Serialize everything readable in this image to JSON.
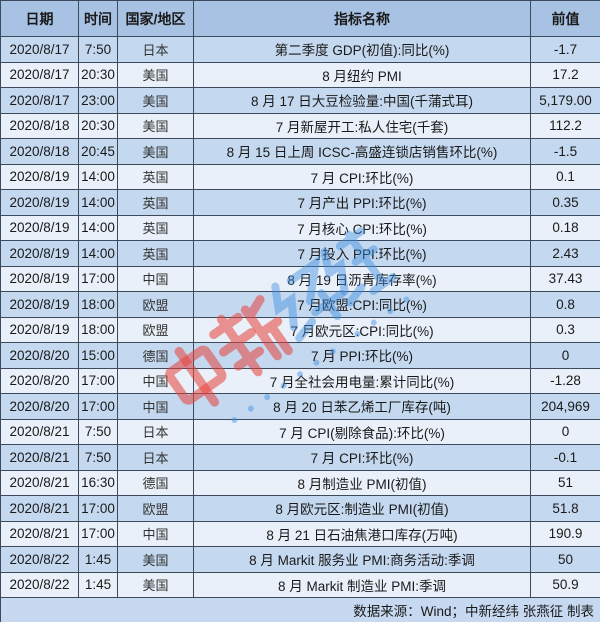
{
  "table": {
    "headers": [
      "日期",
      "时间",
      "国家/地区",
      "指标名称",
      "前值"
    ],
    "rows": [
      {
        "date": "2020/8/17",
        "time": "7:50",
        "country": "日本",
        "name": "第二季度 GDP(初值):同比(%)",
        "prev": "-1.7"
      },
      {
        "date": "2020/8/17",
        "time": "20:30",
        "country": "美国",
        "name": "8 月纽约 PMI",
        "prev": "17.2"
      },
      {
        "date": "2020/8/17",
        "time": "23:00",
        "country": "美国",
        "name": "8 月 17 日大豆检验量:中国(千蒲式耳)",
        "prev": "5,179.00"
      },
      {
        "date": "2020/8/18",
        "time": "20:30",
        "country": "美国",
        "name": "7 月新屋开工:私人住宅(千套)",
        "prev": "112.2"
      },
      {
        "date": "2020/8/18",
        "time": "20:45",
        "country": "美国",
        "name": "8 月 15 日上周 ICSC-高盛连锁店销售环比(%)",
        "prev": "-1.5"
      },
      {
        "date": "2020/8/19",
        "time": "14:00",
        "country": "英国",
        "name": "7 月 CPI:环比(%)",
        "prev": "0.1"
      },
      {
        "date": "2020/8/19",
        "time": "14:00",
        "country": "英国",
        "name": "7 月产出 PPI:环比(%)",
        "prev": "0.35"
      },
      {
        "date": "2020/8/19",
        "time": "14:00",
        "country": "英国",
        "name": "7 月核心 CPI:环比(%)",
        "prev": "0.18"
      },
      {
        "date": "2020/8/19",
        "time": "14:00",
        "country": "英国",
        "name": "7 月投入 PPI:环比(%)",
        "prev": "2.43"
      },
      {
        "date": "2020/8/19",
        "time": "17:00",
        "country": "中国",
        "name": "8 月 19 日沥青库存率(%)",
        "prev": "37.43"
      },
      {
        "date": "2020/8/19",
        "time": "18:00",
        "country": "欧盟",
        "name": "7 月欧盟:CPI:同比(%)",
        "prev": "0.8"
      },
      {
        "date": "2020/8/19",
        "time": "18:00",
        "country": "欧盟",
        "name": "7 月欧元区:CPI:同比(%)",
        "prev": "0.3"
      },
      {
        "date": "2020/8/20",
        "time": "15:00",
        "country": "德国",
        "name": "7 月 PPI:环比(%)",
        "prev": "0"
      },
      {
        "date": "2020/8/20",
        "time": "17:00",
        "country": "中国",
        "name": "7 月全社会用电量:累计同比(%)",
        "prev": "-1.28"
      },
      {
        "date": "2020/8/20",
        "time": "17:00",
        "country": "中国",
        "name": "8 月 20 日苯乙烯工厂库存(吨)",
        "prev": "204,969"
      },
      {
        "date": "2020/8/21",
        "time": "7:50",
        "country": "日本",
        "name": "7 月 CPI(剔除食品):环比(%)",
        "prev": "0"
      },
      {
        "date": "2020/8/21",
        "time": "7:50",
        "country": "日本",
        "name": "7 月 CPI:环比(%)",
        "prev": "-0.1"
      },
      {
        "date": "2020/8/21",
        "time": "16:30",
        "country": "德国",
        "name": "8 月制造业 PMI(初值)",
        "prev": "51"
      },
      {
        "date": "2020/8/21",
        "time": "17:00",
        "country": "欧盟",
        "name": "8 月欧元区:制造业 PMI(初值)",
        "prev": "51.8"
      },
      {
        "date": "2020/8/21",
        "time": "17:00",
        "country": "中国",
        "name": "8 月 21 日石油焦港口库存(万吨)",
        "prev": "190.9"
      },
      {
        "date": "2020/8/22",
        "time": "1:45",
        "country": "美国",
        "name": "8 月 Markit 服务业 PMI:商务活动:季调",
        "prev": "50"
      },
      {
        "date": "2020/8/22",
        "time": "1:45",
        "country": "美国",
        "name": "8 月 Markit 制造业 PMI:季调",
        "prev": "50.9"
      }
    ],
    "footer": "数据来源：Wind；中新经纬 张燕征 制表"
  },
  "watermark": {
    "logo": "中新经纬",
    "subtitle": "ECONOMIC VIEW",
    "colors": {
      "red": "#e8423a",
      "blue": "#3f8fe0"
    }
  },
  "colors": {
    "header": "#a7c2e3",
    "row_dark": "#c4d8ef",
    "row_light": "#e9f0f9",
    "border": "#3d4a5c"
  }
}
